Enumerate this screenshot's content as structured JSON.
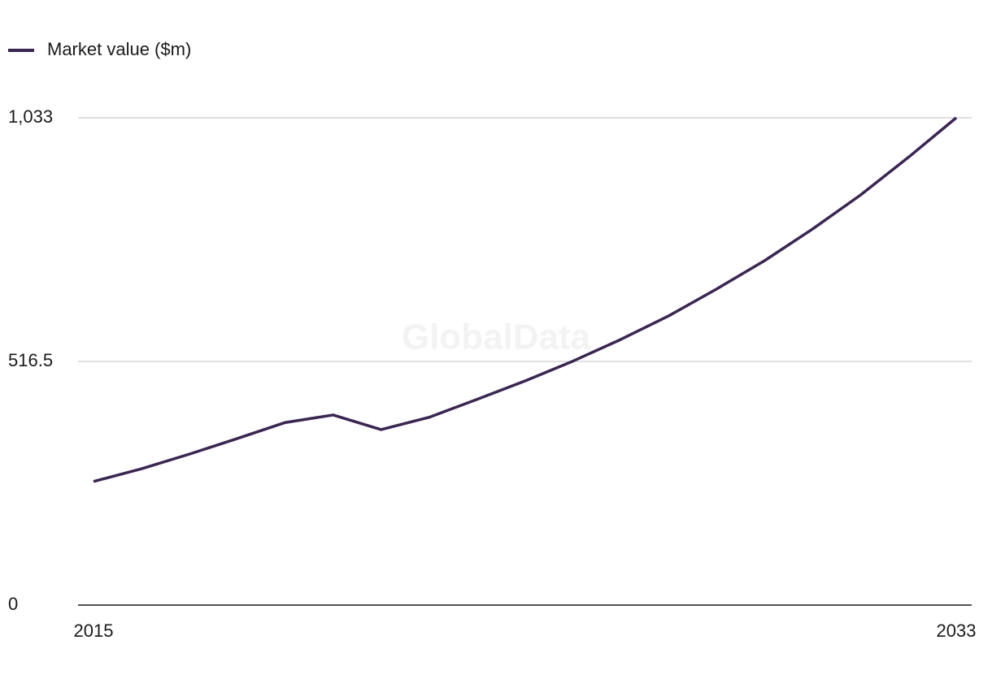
{
  "chart_data": {
    "type": "line",
    "watermark": "GlobalData",
    "x": [
      2015,
      2016,
      2017,
      2018,
      2019,
      2020,
      2021,
      2022,
      2023,
      2024,
      2025,
      2026,
      2027,
      2028,
      2029,
      2030,
      2031,
      2032,
      2033
    ],
    "series": [
      {
        "name": "Market value ($m)",
        "color": "#3b2555",
        "values": [
          262,
          289,
          320,
          353,
          387,
          403,
          372,
          398,
          436,
          475,
          517,
          563,
          613,
          670,
          730,
          797,
          869,
          949,
          1033
        ]
      }
    ],
    "xlim": [
      2015,
      2033
    ],
    "xticks": [
      2015,
      2033
    ],
    "ylim": [
      0,
      1033
    ],
    "yticks": [
      0,
      516.5,
      {
        "value": 1033,
        "label": "1,033"
      }
    ],
    "grid": true,
    "legend": "top-left"
  }
}
